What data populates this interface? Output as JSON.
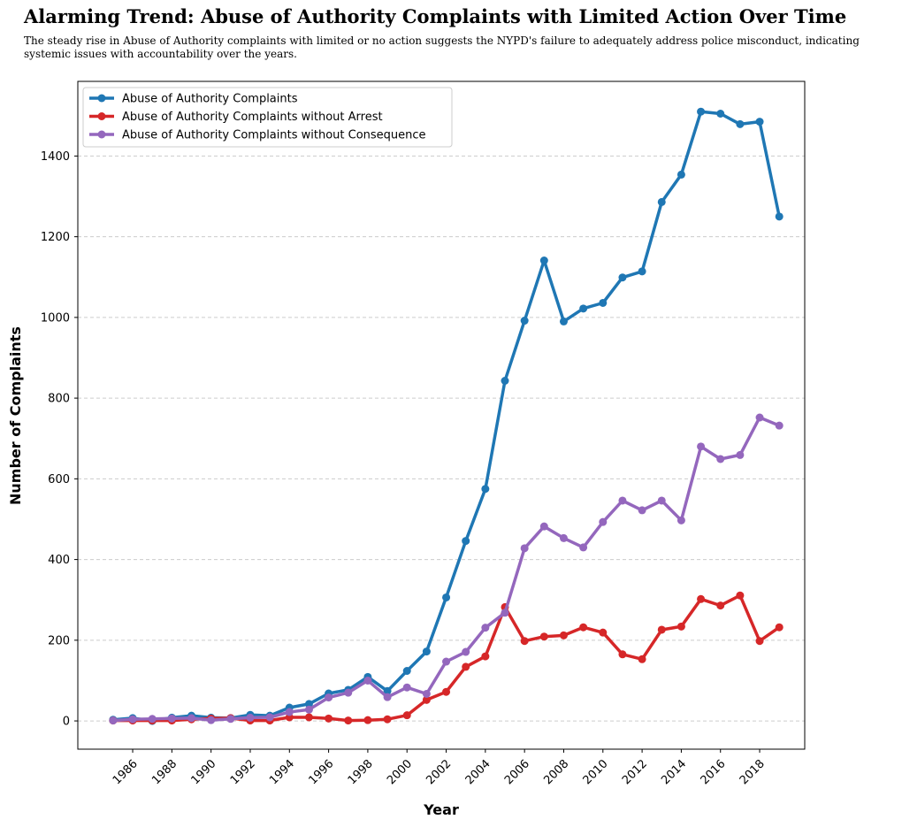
{
  "title": "Alarming Trend: Abuse of Authority Complaints with Limited Action Over Time",
  "subtitle": "The steady rise in Abuse of Authority complaints with limited or no action suggests the NYPD's failure to adequately address police misconduct, indicating systemic issues with accountability over the years.",
  "chart_data": {
    "type": "line",
    "title": "Alarming Trend: Abuse of Authority Complaints with Limited Action Over Time",
    "xlabel": "Year",
    "ylabel": "Number of Complaints",
    "x": [
      1985,
      1986,
      1987,
      1988,
      1989,
      1990,
      1991,
      1992,
      1993,
      1994,
      1995,
      1996,
      1997,
      1998,
      1999,
      2000,
      2001,
      2002,
      2003,
      2004,
      2005,
      2006,
      2007,
      2008,
      2009,
      2010,
      2011,
      2012,
      2013,
      2014,
      2015,
      2016,
      2017,
      2018,
      2019
    ],
    "xticks": [
      1986,
      1988,
      1990,
      1992,
      1994,
      1996,
      1998,
      2000,
      2002,
      2004,
      2006,
      2008,
      2010,
      2012,
      2014,
      2016,
      2018
    ],
    "xlim": [
      1983.2,
      2020.3
    ],
    "yticks": [
      0,
      200,
      400,
      600,
      800,
      1000,
      1200,
      1400
    ],
    "ylim": [
      -70,
      1585
    ],
    "grid": "y-dashed",
    "legend_position": "top-left",
    "series": [
      {
        "name": "Abuse of Authority Complaints",
        "color": "#1f77b4",
        "values": [
          3,
          7,
          0,
          8,
          13,
          8,
          7,
          15,
          13,
          33,
          42,
          68,
          77,
          109,
          74,
          124,
          172,
          306,
          446,
          575,
          843,
          992,
          1141,
          990,
          1022,
          1036,
          1099,
          1114,
          1286,
          1354,
          1510,
          1505,
          1479,
          1485,
          1250
        ]
      },
      {
        "name": "Abuse of Authority Complaints without Arrest",
        "color": "#d62728",
        "values": [
          1,
          1,
          1,
          1,
          4,
          6,
          7,
          1,
          1,
          9,
          9,
          6,
          1,
          2,
          4,
          14,
          52,
          72,
          134,
          160,
          282,
          198,
          209,
          212,
          232,
          219,
          165,
          153,
          226,
          234,
          302,
          286,
          311,
          198,
          232
        ]
      },
      {
        "name": "Abuse of Authority Complaints without Consequence",
        "color": "#9467bd",
        "values": [
          1,
          4,
          5,
          6,
          7,
          2,
          5,
          8,
          9,
          22,
          28,
          58,
          70,
          100,
          59,
          83,
          67,
          147,
          171,
          231,
          268,
          428,
          482,
          453,
          430,
          493,
          546,
          522,
          546,
          497,
          680,
          649,
          659,
          752,
          732
        ]
      }
    ]
  }
}
